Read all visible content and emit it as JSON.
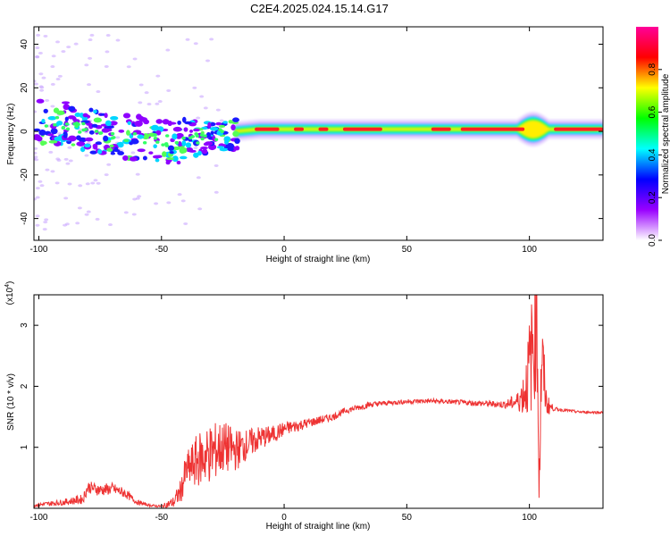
{
  "title": "C2E4.2025.024.15.14.G17",
  "colors": {
    "snr_line": "#ee3333",
    "axis": "#000000"
  },
  "chart_data": [
    {
      "type": "heatmap",
      "xlabel": "Height of straight line (km)",
      "ylabel": "Frequency (Hz)",
      "xlim": [
        -102,
        130
      ],
      "ylim": [
        -50,
        48
      ],
      "x_ticks": [
        "-100",
        "-50",
        "0",
        "50",
        "100"
      ],
      "y_ticks": [
        "-40",
        "-20",
        "0",
        "20",
        "40"
      ],
      "colorbar": {
        "label": "Normalized spectral amplitude",
        "range": [
          0,
          1
        ],
        "ticks": [
          "0.0",
          "0.2",
          "0.4",
          "0.6",
          "0.8"
        ],
        "colormap": [
          "#ffffff",
          "#9900ff",
          "#0000ff",
          "#00ffff",
          "#00ff00",
          "#ffff00",
          "#ff0000",
          "#ff0099"
        ]
      },
      "ridge": [
        {
          "x": -100,
          "y": 4
        },
        {
          "x": -90,
          "y": 4
        },
        {
          "x": -80,
          "y": 1
        },
        {
          "x": -70,
          "y": -2
        },
        {
          "x": -60,
          "y": -3
        },
        {
          "x": -50,
          "y": -4
        },
        {
          "x": -45,
          "y": -5
        },
        {
          "x": -40,
          "y": -4
        },
        {
          "x": -35,
          "y": -3
        },
        {
          "x": -30,
          "y": -2
        },
        {
          "x": -25,
          "y": -1
        },
        {
          "x": -20,
          "y": 0
        },
        {
          "x": -10,
          "y": 1
        },
        {
          "x": 0,
          "y": 1
        },
        {
          "x": 20,
          "y": 1
        },
        {
          "x": 50,
          "y": 1
        },
        {
          "x": 80,
          "y": 1
        },
        {
          "x": 100,
          "y": 1
        },
        {
          "x": 130,
          "y": 1
        }
      ]
    },
    {
      "type": "line",
      "xlabel": "Height of straight line (km)",
      "ylabel": "SNR (10 * v/v)",
      "y_multiplier": "(x10",
      "y_multiplier_exp": "4",
      "y_multiplier_close": ")",
      "xlim": [
        -102,
        130
      ],
      "ylim": [
        0,
        3.5
      ],
      "x_ticks": [
        "-100",
        "-50",
        "0",
        "50",
        "100"
      ],
      "y_ticks": [
        "1",
        "2",
        "3"
      ],
      "series": [
        {
          "x": [
            -102,
            -90,
            -82,
            -80,
            -75,
            -70,
            -65,
            -60,
            -55,
            -50,
            -45,
            -42,
            -40,
            -35,
            -30,
            -25,
            -20,
            -15,
            -10,
            -5,
            0,
            5,
            10,
            15,
            20,
            25,
            30,
            35,
            40,
            50,
            60,
            70,
            80,
            90,
            95,
            98,
            100,
            102,
            103,
            104,
            105,
            107,
            110,
            120,
            130
          ],
          "y": [
            0.05,
            0.1,
            0.15,
            0.35,
            0.3,
            0.32,
            0.25,
            0.1,
            0.05,
            0.03,
            0.1,
            0.3,
            0.6,
            0.8,
            0.9,
            1.0,
            0.95,
            1.05,
            1.15,
            1.2,
            1.3,
            1.35,
            1.4,
            1.45,
            1.5,
            1.6,
            1.65,
            1.7,
            1.72,
            1.75,
            1.76,
            1.74,
            1.72,
            1.7,
            1.75,
            1.9,
            2.3,
            2.8,
            3.4,
            0.5,
            2.5,
            1.7,
            1.63,
            1.58,
            1.57
          ],
          "noise": [
            0.03,
            0.05,
            0.08,
            0.1,
            0.1,
            0.1,
            0.08,
            0.04,
            0.02,
            0.02,
            0.1,
            0.2,
            0.3,
            0.45,
            0.5,
            0.45,
            0.35,
            0.25,
            0.2,
            0.15,
            0.12,
            0.1,
            0.08,
            0.07,
            0.06,
            0.05,
            0.05,
            0.05,
            0.04,
            0.04,
            0.04,
            0.04,
            0.05,
            0.06,
            0.15,
            0.4,
            0.8,
            1.2,
            1.2,
            0.8,
            0.8,
            0.2,
            0.03,
            0.02,
            0.02
          ]
        }
      ]
    }
  ]
}
